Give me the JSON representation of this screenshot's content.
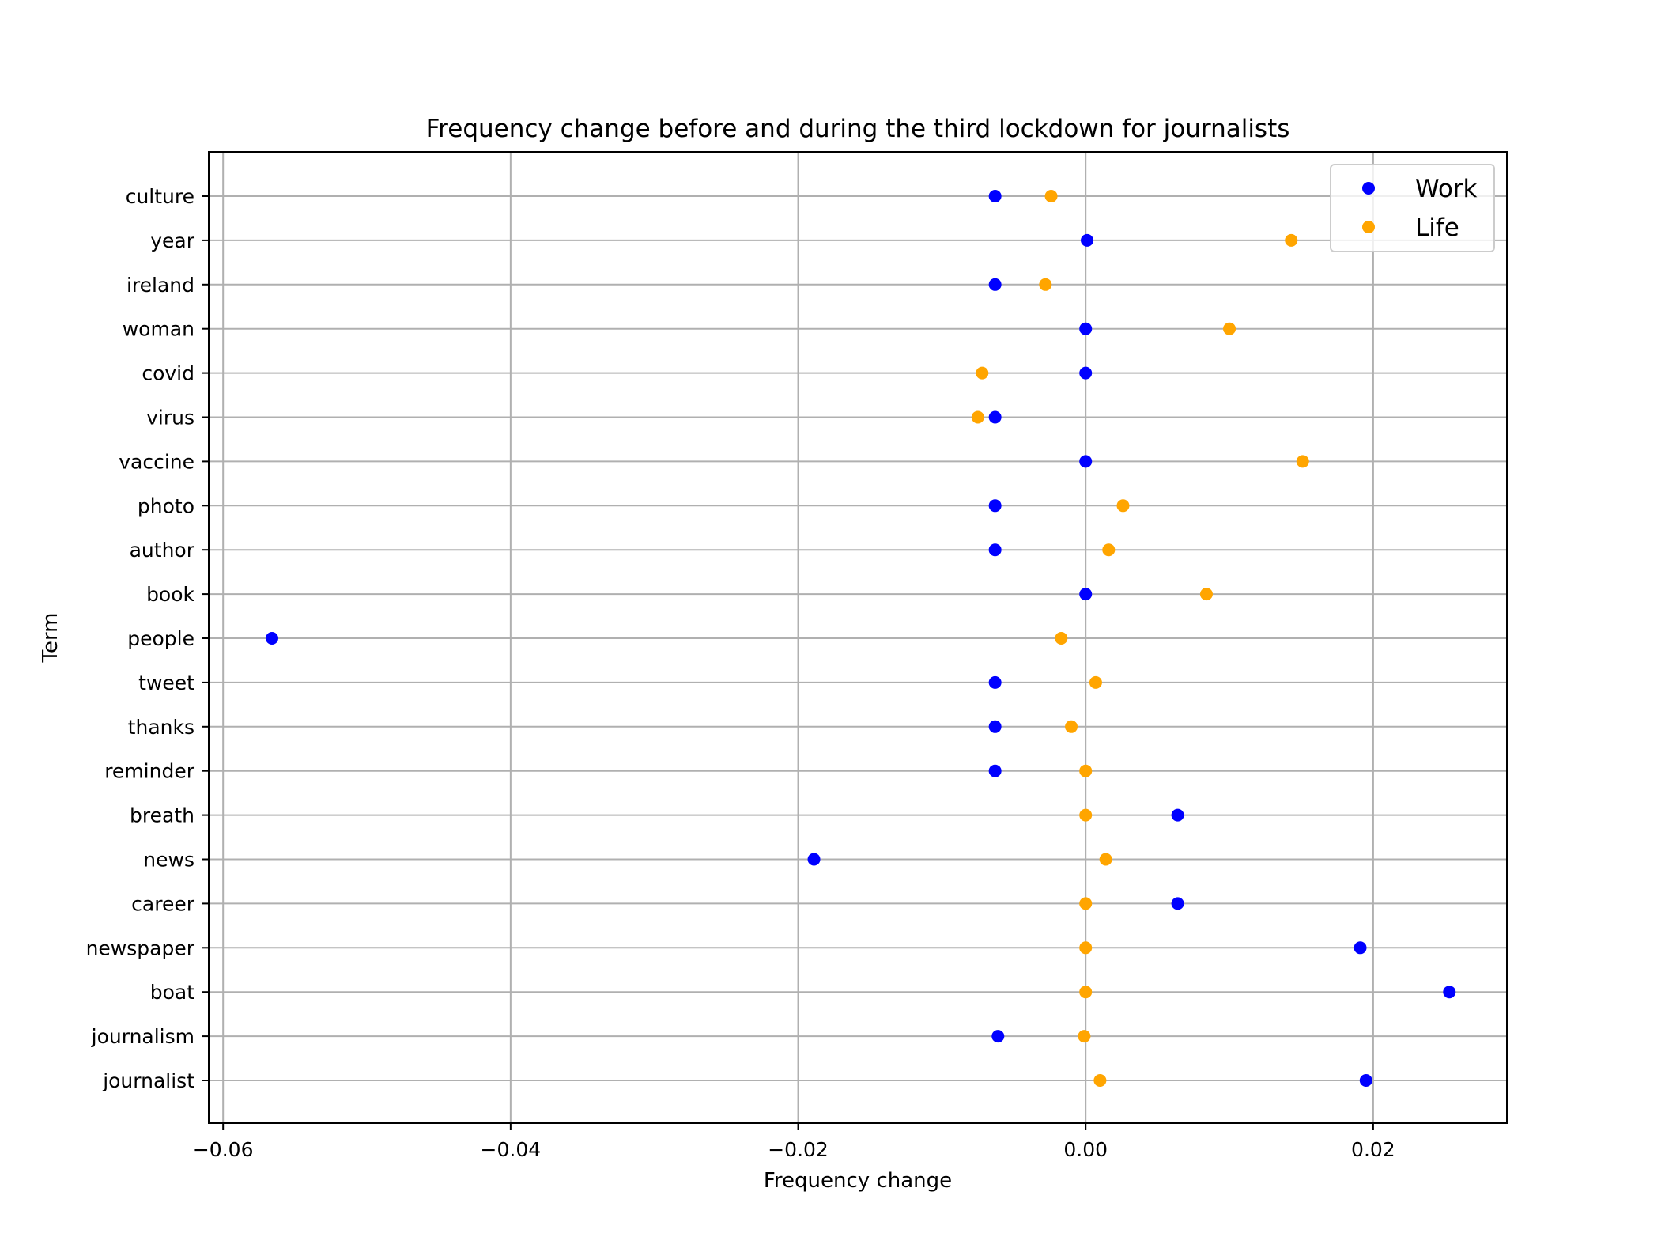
{
  "chart_data": {
    "type": "scatter",
    "title": "Frequency change before and during the third lockdown for journalists",
    "xlabel": "Frequency change",
    "ylabel": "Term",
    "xlim": [
      -0.061,
      0.0293
    ],
    "x_ticks": [
      -0.06,
      -0.04,
      -0.02,
      0.0,
      0.02
    ],
    "x_tick_labels": [
      "−0.06",
      "−0.04",
      "−0.02",
      "0.00",
      "0.02"
    ],
    "grid": true,
    "legend_position": "top-right",
    "categories": [
      "culture",
      "year",
      "ireland",
      "woman",
      "covid",
      "virus",
      "vaccine",
      "photo",
      "author",
      "book",
      "people",
      "tweet",
      "thanks",
      "reminder",
      "breath",
      "news",
      "career",
      "newspaper",
      "boat",
      "journalism",
      "journalist"
    ],
    "series": [
      {
        "name": "Work",
        "color": "#0000ff",
        "values": [
          -0.0063,
          0.0001,
          -0.0063,
          0.0,
          0.0,
          -0.0063,
          0.0,
          -0.0063,
          -0.0063,
          0.0,
          -0.0566,
          -0.0063,
          -0.0063,
          -0.0063,
          0.0064,
          -0.0189,
          0.0064,
          0.0191,
          0.0253,
          -0.0061,
          0.0195
        ]
      },
      {
        "name": "Life",
        "color": "#ffa500",
        "values": [
          -0.0024,
          0.0143,
          -0.0028,
          0.01,
          -0.0072,
          -0.0075,
          0.0151,
          0.0026,
          0.0016,
          0.0084,
          -0.0017,
          0.0007,
          -0.001,
          0.0,
          0.0,
          0.0014,
          0.0,
          0.0,
          0.0,
          -0.0001,
          0.001
        ]
      }
    ]
  }
}
